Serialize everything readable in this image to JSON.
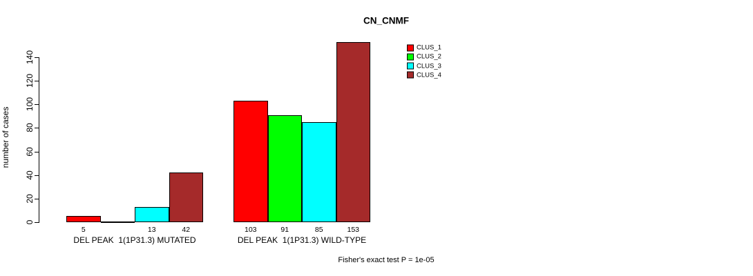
{
  "title": "CN_CNMF",
  "footer": "Fisher's exact test P = 1e-05",
  "y_axis": {
    "label": "number of cases",
    "tick_labels": [
      "0",
      "20",
      "40",
      "60",
      "80",
      "100",
      "120",
      "140"
    ]
  },
  "legend": {
    "items": [
      {
        "label": "CLUS_1",
        "color": "#FF0000"
      },
      {
        "label": "CLUS_2",
        "color": "#00FF00"
      },
      {
        "label": "CLUS_3",
        "color": "#00FFFF"
      },
      {
        "label": "CLUS_4",
        "color": "#A52A2A"
      }
    ]
  },
  "colors": {
    "clus_1": "#FF0000",
    "clus_2": "#00FF00",
    "clus_3": "#00FFFF",
    "clus_4": "#A52A2A",
    "axis": "#000000",
    "background": "#FFFFFF"
  },
  "chart_data": {
    "type": "bar",
    "title": "CN_CNMF",
    "xlabel": "",
    "ylabel": "number of cases",
    "ylim": [
      0,
      140
    ],
    "yticks": [
      0,
      20,
      40,
      60,
      80,
      100,
      120,
      140
    ],
    "grid": false,
    "legend_position": "top-right",
    "series": [
      {
        "name": "CLUS_1",
        "color": "#FF0000"
      },
      {
        "name": "CLUS_2",
        "color": "#00FF00"
      },
      {
        "name": "CLUS_3",
        "color": "#00FFFF"
      },
      {
        "name": "CLUS_4",
        "color": "#A52A2A"
      }
    ],
    "groups": [
      {
        "label": "DEL PEAK  1(1P31.3) MUTATED",
        "values": [
          5,
          0,
          13,
          42
        ],
        "bar_labels": [
          "5",
          "",
          "13",
          "42"
        ]
      },
      {
        "label": "DEL PEAK  1(1P31.3) WILD-TYPE",
        "values": [
          103,
          91,
          85,
          153
        ],
        "bar_labels": [
          "103",
          "91",
          "85",
          "153"
        ]
      }
    ],
    "annotation": "Fisher's exact test P = 1e-05"
  }
}
